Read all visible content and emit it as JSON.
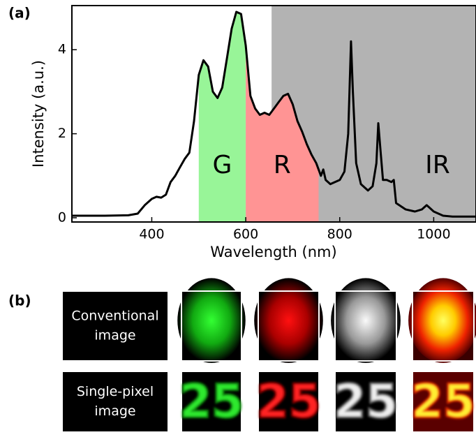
{
  "panel_a_label": "(a)",
  "panel_b_label": "(b)",
  "chart_data": {
    "type": "line",
    "xlabel": "Wavelength (nm)",
    "ylabel": "Intensity (a.u.)",
    "x": [
      230,
      300,
      350,
      370,
      385,
      400,
      410,
      420,
      430,
      440,
      450,
      460,
      470,
      480,
      490,
      500,
      510,
      520,
      530,
      540,
      550,
      560,
      570,
      580,
      590,
      600,
      610,
      620,
      630,
      640,
      650,
      660,
      670,
      680,
      690,
      700,
      710,
      720,
      730,
      740,
      750,
      760,
      765,
      770,
      780,
      790,
      800,
      810,
      818,
      824,
      828,
      835,
      845,
      860,
      870,
      878,
      882,
      886,
      892,
      900,
      910,
      915,
      920,
      940,
      960,
      975,
      985,
      990,
      1000,
      1020,
      1040,
      1090
    ],
    "values": [
      0.05,
      0.05,
      0.06,
      0.1,
      0.3,
      0.45,
      0.5,
      0.48,
      0.55,
      0.85,
      1.0,
      1.2,
      1.4,
      1.55,
      2.3,
      3.4,
      3.75,
      3.6,
      3.0,
      2.85,
      3.1,
      3.8,
      4.5,
      4.9,
      4.85,
      4.1,
      2.9,
      2.6,
      2.45,
      2.5,
      2.45,
      2.6,
      2.75,
      2.9,
      2.95,
      2.7,
      2.3,
      2.05,
      1.75,
      1.5,
      1.3,
      1.0,
      1.15,
      0.9,
      0.8,
      0.85,
      0.9,
      1.1,
      2.0,
      4.2,
      3.0,
      1.3,
      0.8,
      0.65,
      0.75,
      1.3,
      2.25,
      1.7,
      0.9,
      0.9,
      0.85,
      0.9,
      0.35,
      0.2,
      0.15,
      0.2,
      0.3,
      0.25,
      0.15,
      0.05,
      0.03,
      0.03
    ],
    "color": "#000000",
    "xlim": [
      230,
      1090
    ],
    "ylim": [
      -0.1,
      5.05
    ],
    "xticks": [
      400,
      600,
      800,
      1000
    ],
    "yticks": [
      0,
      2,
      4
    ],
    "bands": [
      {
        "label": "IR",
        "start": 655,
        "end": 1090,
        "color": "#b3b3b3",
        "fill": "full"
      },
      {
        "label": "G",
        "start": 500,
        "end": 600,
        "color": "#98f598",
        "fill": "under"
      },
      {
        "label": "R",
        "start": 600,
        "end": 755,
        "color": "#ff9494",
        "fill": "under"
      }
    ]
  },
  "images": {
    "rows": [
      {
        "label": [
          "Conventional",
          "image"
        ]
      },
      {
        "label": [
          "Single-pixel",
          "image"
        ]
      }
    ],
    "digits": "25"
  }
}
